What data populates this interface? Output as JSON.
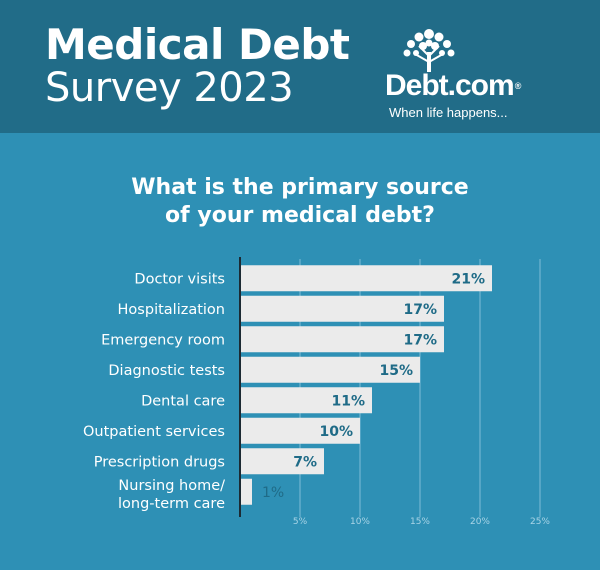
{
  "header": {
    "title_line1": "Medical Debt",
    "title_line2": "Survey 2023",
    "logo_text": "Debt.com",
    "logo_reg": "®",
    "logo_tagline": "When life happens..."
  },
  "question": {
    "line1": "What is the primary source",
    "line2": "of your medical debt?"
  },
  "colors": {
    "header_bg": "#216c88",
    "page_bg": "#2e90b5",
    "bar": "#ebebeb",
    "value_label": "#1f6b87",
    "axis_line": "#1c2a33",
    "grid": "#7fbdd6"
  },
  "chart_data": {
    "type": "bar",
    "orientation": "horizontal",
    "categories": [
      [
        "Doctor visits"
      ],
      [
        "Hospitalization"
      ],
      [
        "Emergency room"
      ],
      [
        "Diagnostic tests"
      ],
      [
        "Dental care"
      ],
      [
        "Outpatient services"
      ],
      [
        "Prescription drugs"
      ],
      [
        "Nursing home/",
        "long-term care"
      ]
    ],
    "values": [
      21,
      17,
      17,
      15,
      11,
      10,
      7,
      1
    ],
    "value_labels": [
      "21%",
      "17%",
      "17%",
      "15%",
      "11%",
      "10%",
      "7%",
      "1%"
    ],
    "xlim": [
      0,
      25
    ],
    "xticks": [
      5,
      10,
      15,
      20,
      25
    ],
    "xtick_labels": [
      "5%",
      "10%",
      "15%",
      "20%",
      "25%"
    ],
    "grid": true
  }
}
